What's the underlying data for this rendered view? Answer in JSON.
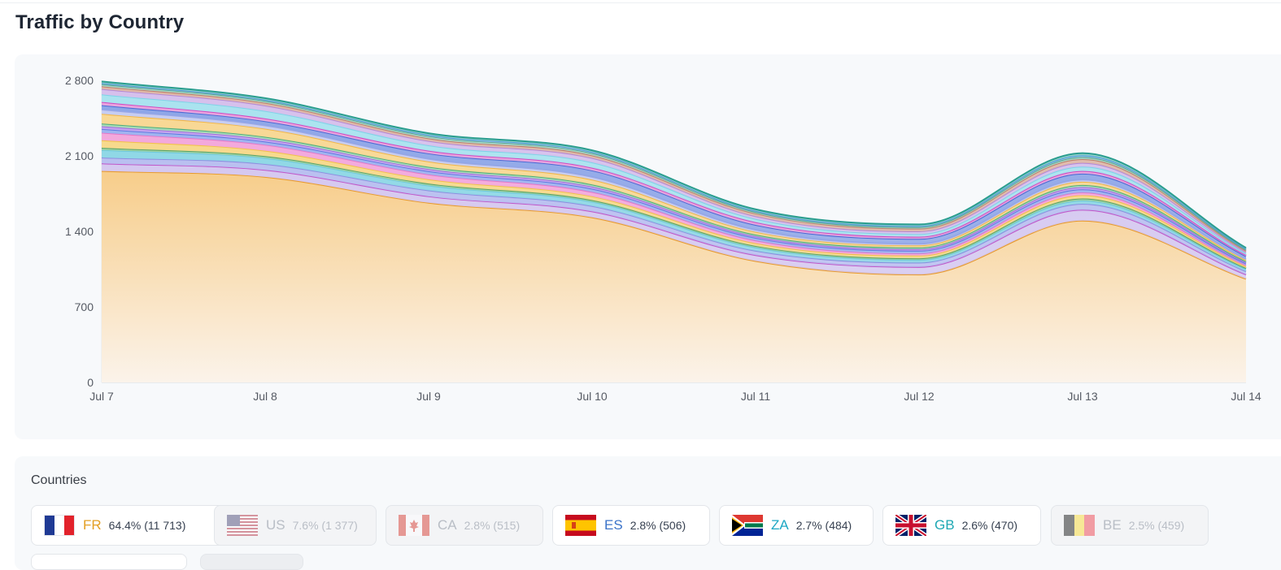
{
  "page": {
    "title": "Traffic by Country"
  },
  "chart_data": {
    "type": "area",
    "title": "",
    "xlabel": "",
    "ylabel": "",
    "stacked": true,
    "ylim": [
      0,
      2800
    ],
    "y_ticks": [
      "0",
      "700",
      "1 400",
      "2 100",
      "2 800"
    ],
    "y_tick_values": [
      0,
      700,
      1400,
      2100,
      2800
    ],
    "categories": [
      "Jul 7",
      "Jul 8",
      "Jul 9",
      "Jul 10",
      "Jul 11",
      "Jul 12",
      "Jul 13",
      "Jul 14"
    ],
    "grid": false,
    "series": [
      {
        "color": "#e89a2c",
        "fill_top": "#f7cd8a",
        "values": [
          1960,
          1905,
          1665,
          1530,
          1125,
          1000,
          1500,
          960
        ]
      },
      {
        "color": "#c157c9",
        "fill_top": "#d5c8f0",
        "values": [
          70,
          65,
          60,
          55,
          55,
          70,
          100,
          40
        ]
      },
      {
        "color": "#8e8fe0",
        "fill_top": "#b9bff0",
        "values": [
          55,
          55,
          55,
          50,
          40,
          40,
          55,
          30
        ]
      },
      {
        "color": "#6ec9dd",
        "fill_top": "#8fd8e6",
        "values": [
          70,
          55,
          45,
          40,
          30,
          25,
          30,
          20
        ]
      },
      {
        "color": "#55a36a",
        "fill_top": "#9fd3a4",
        "values": [
          20,
          18,
          18,
          15,
          15,
          15,
          20,
          10
        ]
      },
      {
        "color": "#f2c24a",
        "fill_top": "#f7d98c",
        "values": [
          70,
          50,
          40,
          35,
          25,
          25,
          30,
          15
        ]
      },
      {
        "color": "#e478c8",
        "fill_top": "#f3a8dc",
        "values": [
          70,
          55,
          45,
          40,
          25,
          20,
          25,
          12
        ]
      },
      {
        "color": "#5f7ae0",
        "fill_top": "#9fb3f0",
        "values": [
          35,
          30,
          30,
          30,
          25,
          25,
          30,
          15
        ]
      },
      {
        "color": "#a56de0",
        "fill_top": "#c4a4ef",
        "values": [
          25,
          22,
          20,
          20,
          15,
          15,
          20,
          10
        ]
      },
      {
        "color": "#4caf7c",
        "fill_top": "#a8dbb8",
        "values": [
          25,
          22,
          20,
          20,
          15,
          15,
          20,
          10
        ]
      },
      {
        "color": "#f2b648",
        "fill_top": "#f8d894",
        "values": [
          90,
          75,
          50,
          45,
          25,
          20,
          30,
          12
        ]
      },
      {
        "color": "#9da8e6",
        "fill_top": "#c6cdf2",
        "values": [
          40,
          30,
          25,
          25,
          20,
          15,
          20,
          10
        ]
      },
      {
        "color": "#4a6cd4",
        "fill_top": "#8ea6e8",
        "values": [
          40,
          40,
          50,
          60,
          45,
          45,
          55,
          25
        ]
      },
      {
        "color": "#d448c0",
        "fill_top": "#eaa3de",
        "values": [
          30,
          25,
          25,
          25,
          25,
          20,
          25,
          12
        ]
      },
      {
        "color": "#7fd3e8",
        "fill_top": "#a9e3ef",
        "values": [
          70,
          70,
          50,
          50,
          30,
          25,
          40,
          15
        ]
      },
      {
        "color": "#b48ad8",
        "fill_top": "#d6c0ec",
        "values": [
          50,
          50,
          40,
          40,
          25,
          25,
          35,
          12
        ]
      },
      {
        "color": "#c0806a",
        "fill_top": "#dfb8a8",
        "values": [
          25,
          25,
          25,
          25,
          25,
          25,
          35,
          12
        ]
      },
      {
        "color": "#5aa590",
        "fill_top": "#a6d6c8",
        "values": [
          20,
          18,
          20,
          20,
          15,
          15,
          20,
          10
        ]
      },
      {
        "color": "#4f9bd8",
        "fill_top": "#a3cdef",
        "values": [
          10,
          10,
          12,
          12,
          10,
          10,
          15,
          8
        ]
      },
      {
        "color": "#2a9d8f",
        "fill_top": "#8fd0c7",
        "values": [
          15,
          15,
          15,
          15,
          15,
          15,
          20,
          10
        ]
      }
    ]
  },
  "legend": {
    "heading": "Countries",
    "items": [
      {
        "code": "FR",
        "stat": "64.4% (11 713)",
        "color": "#e3a025",
        "active": true,
        "flag": "france-flag-icon"
      },
      {
        "code": "US",
        "stat": "7.6% (1 377)",
        "color": "#b9bec6",
        "active": false,
        "flag": "usa-flag-icon"
      },
      {
        "code": "CA",
        "stat": "2.8% (515)",
        "color": "#b9bec6",
        "active": false,
        "flag": "canada-flag-icon"
      },
      {
        "code": "ES",
        "stat": "2.8% (506)",
        "color": "#3b73c9",
        "active": true,
        "flag": "spain-flag-icon"
      },
      {
        "code": "ZA",
        "stat": "2.7% (484)",
        "color": "#1fa8c4",
        "active": true,
        "flag": "south-africa-flag-icon"
      },
      {
        "code": "GB",
        "stat": "2.6% (470)",
        "color": "#1fa8b4",
        "active": true,
        "flag": "uk-flag-icon"
      },
      {
        "code": "BE",
        "stat": "2.5% (459)",
        "color": "#b9bec6",
        "active": false,
        "flag": "belgium-flag-icon"
      }
    ]
  }
}
